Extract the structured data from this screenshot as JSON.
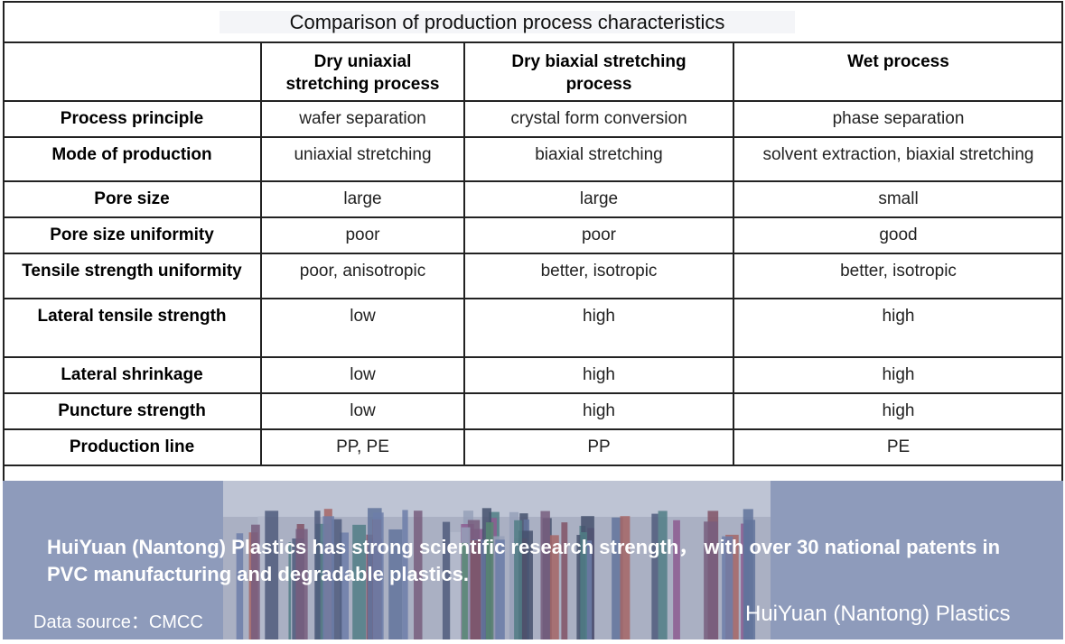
{
  "title": "Comparison of production process characteristics",
  "table": {
    "columns": [
      "",
      "Dry uniaxial stretching process",
      "Dry biaxial stretching process",
      "Wet process"
    ],
    "rows": [
      [
        "Process principle",
        "wafer separation",
        "crystal form conversion",
        "phase separation"
      ],
      [
        "Mode of production",
        "uniaxial stretching",
        "biaxial stretching",
        "solvent extraction, biaxial stretching"
      ],
      [
        "Pore size",
        "large",
        "large",
        "small"
      ],
      [
        "Pore size uniformity",
        "poor",
        "poor",
        "good"
      ],
      [
        "Tensile strength uniformity",
        "poor, anisotropic",
        "better, isotropic",
        "better, isotropic"
      ],
      [
        "Lateral tensile strength",
        "low",
        "high",
        "high"
      ],
      [
        "Lateral shrinkage",
        "low",
        "high",
        "high"
      ],
      [
        "Puncture strength",
        "low",
        "high",
        "high"
      ],
      [
        "Production line",
        "PP, PE",
        "PP",
        "PE"
      ]
    ]
  },
  "banner": {
    "slogan": "HuiYuan (Nantong) Plastics has strong scientific research strength， with over 30 national patents in PVC manufacturing and degradable plastics.",
    "source": "Data source：CMCC",
    "brand": "HuiYuan (Nantong) Plastics"
  }
}
